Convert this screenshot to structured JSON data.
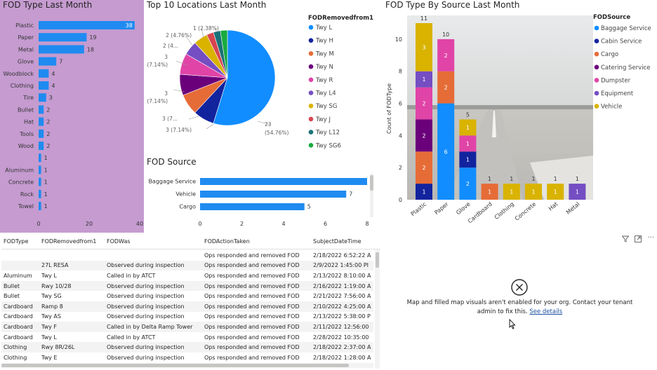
{
  "colors": {
    "bar": "#1f8bf0",
    "purple_bg": "#c59bd0",
    "blue": "#118dff"
  },
  "fod_type": {
    "title": "FOD Type Last Month",
    "chart_data": {
      "type": "bar",
      "orientation": "horizontal",
      "categories": [
        "Plastic",
        "Paper",
        "Metal",
        "Glove",
        "Woodblock",
        "Clothing",
        "Tire",
        "Bullet",
        "Hat",
        "Tools",
        "Wood",
        "",
        "Aluminum",
        "Concrete",
        "Rock",
        "Towel"
      ],
      "values": [
        38,
        19,
        18,
        7,
        4,
        4,
        3,
        2,
        2,
        2,
        2,
        1,
        1,
        1,
        1,
        1
      ],
      "xlim": [
        0,
        40
      ],
      "xticks": [
        "0",
        "20",
        "40"
      ]
    }
  },
  "pie": {
    "title": "Top 10 Locations Last Month",
    "legend_title": "FODRemovedfrom1",
    "chart_data": {
      "type": "pie",
      "labels": [
        "Twy L",
        "Twy H",
        "Twy M",
        "Twy N",
        "Twy R",
        "Twy L4",
        "Twy SG",
        "Twy J",
        "Twy L12",
        "Twy SG6"
      ],
      "values": [
        23,
        3,
        3,
        3,
        3,
        2,
        2,
        1,
        1,
        1
      ],
      "colors": [
        "#118dff",
        "#12239e",
        "#e66c37",
        "#6b007b",
        "#e044a7",
        "#744ec2",
        "#d9b300",
        "#d64550",
        "#197278",
        "#1aab40"
      ]
    },
    "data_labels": [
      "23",
      "(54.76%)",
      "3 (7.14%)",
      "3 (7...",
      "3",
      "(7.14%)",
      "3",
      "(7.14%)",
      "2 (4...",
      "2 (4.76%)",
      "1 (2.38%)"
    ]
  },
  "source": {
    "title": "FOD Source",
    "chart_data": {
      "type": "bar",
      "orientation": "horizontal",
      "categories": [
        "Baggage Service",
        "Vehicle",
        "Cargo"
      ],
      "values": [
        8,
        7,
        5
      ],
      "xlim": [
        0,
        8
      ],
      "xticks": [
        "0",
        "2",
        "4",
        "6",
        "8"
      ]
    }
  },
  "stacked": {
    "title": "FOD Type By Source Last Month",
    "ylabel": "Count of FODType",
    "legend_title": "FODSource",
    "chart_data": {
      "type": "bar",
      "stacked": true,
      "categories": [
        "Plastic",
        "Paper",
        "Glove",
        "Cardboard",
        "Clothing",
        "Concrete",
        "Hat",
        "Metal"
      ],
      "series": [
        {
          "name": "Baggage Service",
          "color": "#118dff",
          "values": [
            0,
            6,
            2,
            0,
            0,
            0,
            0,
            0
          ]
        },
        {
          "name": "Cabin Service",
          "color": "#12239e",
          "values": [
            1,
            0,
            1,
            0,
            0,
            0,
            0,
            0
          ]
        },
        {
          "name": "Cargo",
          "color": "#e66c37",
          "values": [
            2,
            2,
            0,
            1,
            0,
            0,
            0,
            0
          ]
        },
        {
          "name": "Catering Service",
          "color": "#6b007b",
          "values": [
            2,
            0,
            0,
            0,
            0,
            0,
            0,
            0
          ]
        },
        {
          "name": "Dumpster",
          "color": "#e044a7",
          "values": [
            2,
            2,
            1,
            0,
            0,
            0,
            0,
            0
          ]
        },
        {
          "name": "Equipment",
          "color": "#744ec2",
          "values": [
            1,
            0,
            0,
            0,
            0,
            0,
            0,
            1
          ]
        },
        {
          "name": "Vehicle",
          "color": "#d9b300",
          "values": [
            3,
            0,
            1,
            0,
            1,
            1,
            1,
            0
          ]
        }
      ],
      "totals": [
        11,
        10,
        5,
        1,
        1,
        1,
        1,
        1
      ],
      "ylim": [
        0,
        11
      ],
      "yticks": [
        "0",
        "2",
        "4",
        "6",
        "8",
        "10"
      ]
    }
  },
  "table": {
    "headers": [
      "FODType",
      "FODRemovedfrom1",
      "FODWas",
      "FODActionTaken",
      "SubjectDateTime"
    ],
    "rows": [
      [
        "",
        "",
        "",
        "Ops responded and removed FOD",
        "2/18/2022 6:52:22 A"
      ],
      [
        "",
        "27L RESA",
        "Observed during inspection",
        "Ops responded and removed FOD",
        "2/9/2022 1:45:00 PI"
      ],
      [
        "Aluminum",
        "Twy L",
        "Called in by ATCT",
        "Ops responded and removed FOD",
        "2/13/2022 8:10:00 A"
      ],
      [
        "Bullet",
        "Rwy 10/28",
        "Observed during inspection",
        "Ops responded and removed FOD",
        "2/16/2022 1:19:00 A"
      ],
      [
        "Bullet",
        "Twy SG",
        "Observed during inspection",
        "Ops responded and removed FOD",
        "2/21/2022 7:56:00 A"
      ],
      [
        "Cardboard",
        "Ramp 8",
        "Observed during inspection",
        "Ops responded and removed FOD",
        "2/10/2022 4:25:00 A"
      ],
      [
        "Cardboard",
        "Twy AS",
        "Observed during inspection",
        "Ops responded and removed FOD",
        "2/13/2022 5:38:00 P"
      ],
      [
        "Cardboard",
        "Twy F",
        "Called in by Delta Ramp Tower",
        "Ops responded and removed FOD",
        "2/11/2022 12:56:00"
      ],
      [
        "Cardboard",
        "Twy L",
        "Called in by ATCT",
        "Ops responded and removed FOD",
        "2/28/2022 10:35:00"
      ],
      [
        "Clothing",
        "Rwy 8R/26L",
        "Observed during inspection",
        "Ops responded and removed FOD",
        "2/18/2022 2:37:00 A"
      ],
      [
        "Clothing",
        "Twy E",
        "Observed during inspection",
        "Ops responded and removed FOD",
        "2/18/2022 1:28:00 A"
      ]
    ]
  },
  "map": {
    "message_line1": "Map and filled map visuals aren't enabled for your org. Contact your tenant",
    "message_line2": "admin to fix this.",
    "link": "See details"
  }
}
